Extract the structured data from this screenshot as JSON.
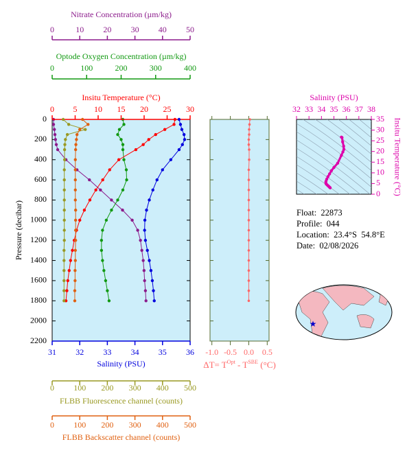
{
  "chart_data": [
    {
      "type": "profile",
      "ylabel": "Pressure (decibar)",
      "ylim": [
        0,
        2200
      ],
      "yticks": [
        0,
        200,
        400,
        600,
        800,
        1000,
        1200,
        1400,
        1600,
        1800,
        2000,
        2200
      ],
      "pressure": [
        0,
        50,
        100,
        150,
        200,
        250,
        300,
        400,
        500,
        600,
        700,
        800,
        900,
        1000,
        1100,
        1200,
        1300,
        1400,
        1500,
        1600,
        1700,
        1800
      ],
      "series": [
        {
          "name": "Nitrate Concentration (µm/kg)",
          "color": "#8b1a8b",
          "xlim": [
            0,
            50
          ],
          "xticks": [
            0,
            10,
            20,
            30,
            40,
            50
          ],
          "values": [
            0.5,
            0.5,
            0.8,
            1.0,
            1.2,
            1.5,
            2.0,
            5.0,
            9.0,
            13.5,
            17.5,
            21.5,
            25.5,
            29.0,
            31.0,
            32.0,
            32.5,
            33.0,
            33.3,
            33.5,
            33.8,
            34.0
          ]
        },
        {
          "name": "Optode Oxygen Concentration (µm/kg)",
          "color": "#119911",
          "xlim": [
            0,
            400
          ],
          "xticks": [
            0,
            100,
            200,
            300,
            400
          ],
          "values": [
            205,
            208,
            195,
            190,
            200,
            205,
            205,
            208,
            215,
            216,
            205,
            190,
            172,
            157,
            146,
            143,
            143,
            146,
            150,
            155,
            160,
            165
          ]
        },
        {
          "name": "Insitu Temperature (°C)",
          "color": "#ff0000",
          "xlim": [
            0,
            30
          ],
          "xticks": [
            0,
            5,
            10,
            15,
            20,
            25,
            30
          ],
          "values": [
            26.7,
            26.5,
            24.5,
            22.5,
            21.0,
            19.8,
            18.2,
            14.5,
            12.5,
            11.0,
            9.5,
            8.2,
            7.0,
            6.0,
            5.3,
            4.8,
            4.4,
            4.0,
            3.7,
            3.4,
            3.2,
            3.0
          ]
        },
        {
          "name": "Salinity (PSU)",
          "color": "#0000dd",
          "xlim": [
            31,
            36
          ],
          "xticks": [
            31,
            32,
            33,
            34,
            35,
            36
          ],
          "values": [
            35.6,
            35.65,
            35.7,
            35.78,
            35.8,
            35.72,
            35.6,
            35.3,
            35.0,
            34.8,
            34.65,
            34.52,
            34.42,
            34.36,
            34.35,
            34.38,
            34.45,
            34.52,
            34.58,
            34.63,
            34.67,
            34.7
          ]
        },
        {
          "name": "FLBB Fluorescence channel (counts)",
          "color": "#999922",
          "xlim": [
            0,
            500
          ],
          "xticks": [
            0,
            100,
            200,
            300,
            400,
            500
          ],
          "values": [
            40,
            60,
            120,
            55,
            48,
            46,
            45,
            45,
            44,
            44,
            44,
            44,
            44,
            44,
            44,
            44,
            43,
            43,
            43,
            43,
            43,
            43
          ]
        },
        {
          "name": "FLBB Backscatter channel (counts)",
          "color": "#e06010",
          "xlim": [
            0,
            500
          ],
          "xticks": [
            0,
            100,
            200,
            300,
            400,
            500
          ],
          "values": [
            110,
            130,
            100,
            90,
            88,
            86,
            85,
            84,
            84,
            84,
            84,
            84,
            85,
            85,
            85,
            85,
            84,
            84,
            83,
            83,
            82,
            82
          ]
        }
      ]
    },
    {
      "type": "delta",
      "xlabel_parts": [
        "ΔT= T",
        "Opt",
        " - T",
        "SBE",
        " (°C)"
      ],
      "color": "#ff6666",
      "xlim": [
        -1.05,
        0.55
      ],
      "xticks": [
        {
          "value": -1,
          "label": "-1.0"
        },
        {
          "value": -0.5,
          "label": "-0.5"
        },
        {
          "value": 0,
          "label": "0.0"
        },
        {
          "value": 0.5,
          "label": "0.5"
        }
      ],
      "values": [
        0.03,
        0.02,
        0.01,
        0.01,
        0.0,
        0.0,
        0.01,
        0.01,
        0.0,
        0.0,
        0.0,
        0.0,
        0.0,
        0.0,
        0.0,
        0.0,
        0.0,
        0.0,
        0.0,
        0.0,
        0.0,
        0.0
      ]
    },
    {
      "type": "ts",
      "xlabel": "Salinity (PSU)",
      "ylabel": "Insitu Temperature (°C)",
      "color": "#dd00aa",
      "xlim": [
        32,
        38
      ],
      "xticks": [
        32,
        33,
        34,
        35,
        36,
        37,
        38
      ],
      "ylim": [
        0,
        35
      ],
      "yticks": [
        0,
        5,
        10,
        15,
        20,
        25,
        30,
        35
      ]
    }
  ],
  "info": [
    "Float:  22873",
    "Profile:  044",
    "Location:  23.4°S  54.8°E",
    "Date:  02/08/2026"
  ]
}
